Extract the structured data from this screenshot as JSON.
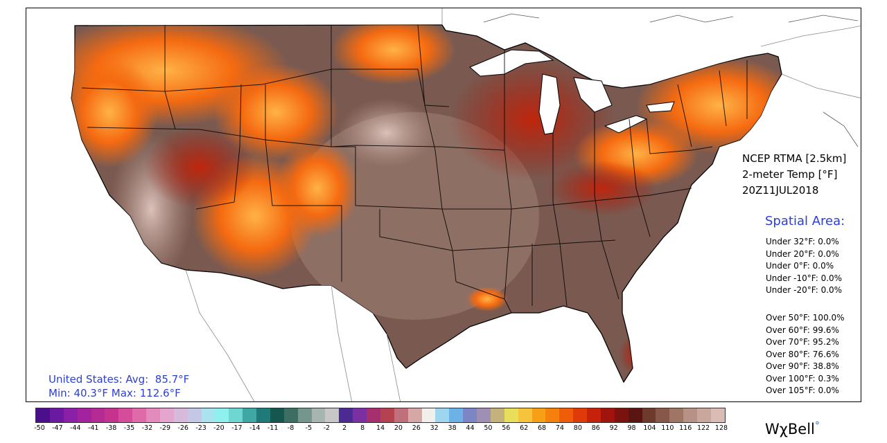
{
  "product": {
    "source": "NCEP RTMA [2.5km]",
    "variable": "2-meter Temp [°F]",
    "valid_time": "20Z11JUL2018"
  },
  "spatial_area": {
    "title": "Spatial Area:",
    "under": [
      {
        "label": "Under 32°F:",
        "value": "0.0%"
      },
      {
        "label": "Under 20°F:",
        "value": "0.0%"
      },
      {
        "label": "Under 0°F:",
        "value": "0.0%"
      },
      {
        "label": "Under -10°F:",
        "value": "0.0%"
      },
      {
        "label": "Under -20°F:",
        "value": "0.0%"
      }
    ],
    "over": [
      {
        "label": "Over 50°F:",
        "value": "100.0%"
      },
      {
        "label": "Over 60°F:",
        "value": "99.6%"
      },
      {
        "label": "Over 70°F:",
        "value": "95.2%"
      },
      {
        "label": "Over 80°F:",
        "value": "76.6%"
      },
      {
        "label": "Over 90°F:",
        "value": "38.8%"
      },
      {
        "label": "Over 100°F:",
        "value": "0.3%"
      },
      {
        "label": "Over 105°F:",
        "value": "0.0%"
      }
    ]
  },
  "us_summary": {
    "avg_label": "United States: Avg:",
    "avg_value": "85.7°F",
    "min_label": "Min:",
    "min_value": "40.3°F",
    "max_label": "Max:",
    "max_value": "112.6°F"
  },
  "colorbar": {
    "tick_labels": [
      "-50",
      "-47",
      "-44",
      "-41",
      "-38",
      "-35",
      "-32",
      "-29",
      "-26",
      "-23",
      "-20",
      "-17",
      "-14",
      "-11",
      "-8",
      "-5",
      "-2",
      "2",
      "8",
      "14",
      "20",
      "26",
      "32",
      "38",
      "44",
      "50",
      "56",
      "62",
      "68",
      "74",
      "80",
      "86",
      "92",
      "98",
      "104",
      "110",
      "116",
      "122",
      "128"
    ],
    "colors": [
      "#4b0f8a",
      "#6a1aa0",
      "#8a1fa8",
      "#a3239e",
      "#b62a94",
      "#c6338f",
      "#d54d9a",
      "#df6aaa",
      "#e48bbe",
      "#e4a6cf",
      "#d7b9dc",
      "#c3c8e6",
      "#a9e3ef",
      "#8ff0ee",
      "#6fd6d2",
      "#3fa8a5",
      "#1f7a78",
      "#15564f",
      "#3d6e63",
      "#74968d",
      "#a7b5b0",
      "#c7c7c7",
      "#4b2a93",
      "#7b2fa0",
      "#a6306f",
      "#b5424f",
      "#c0707a",
      "#d5a8a6",
      "#f1efeb",
      "#9fd6ef",
      "#6cb2e6",
      "#7d86c4",
      "#a08fb4",
      "#c4b27a",
      "#e9de5a",
      "#f5c43a",
      "#f7a017",
      "#f67f0e",
      "#ef5c0a",
      "#e03a0a",
      "#c6220b",
      "#a0140d",
      "#7a1210",
      "#5a1512",
      "#6e3a2c",
      "#87574a",
      "#a07566",
      "#b89185",
      "#c9a79c",
      "#d9bdb4"
    ]
  },
  "brand": {
    "name": "WχBell",
    "mark": "°"
  }
}
